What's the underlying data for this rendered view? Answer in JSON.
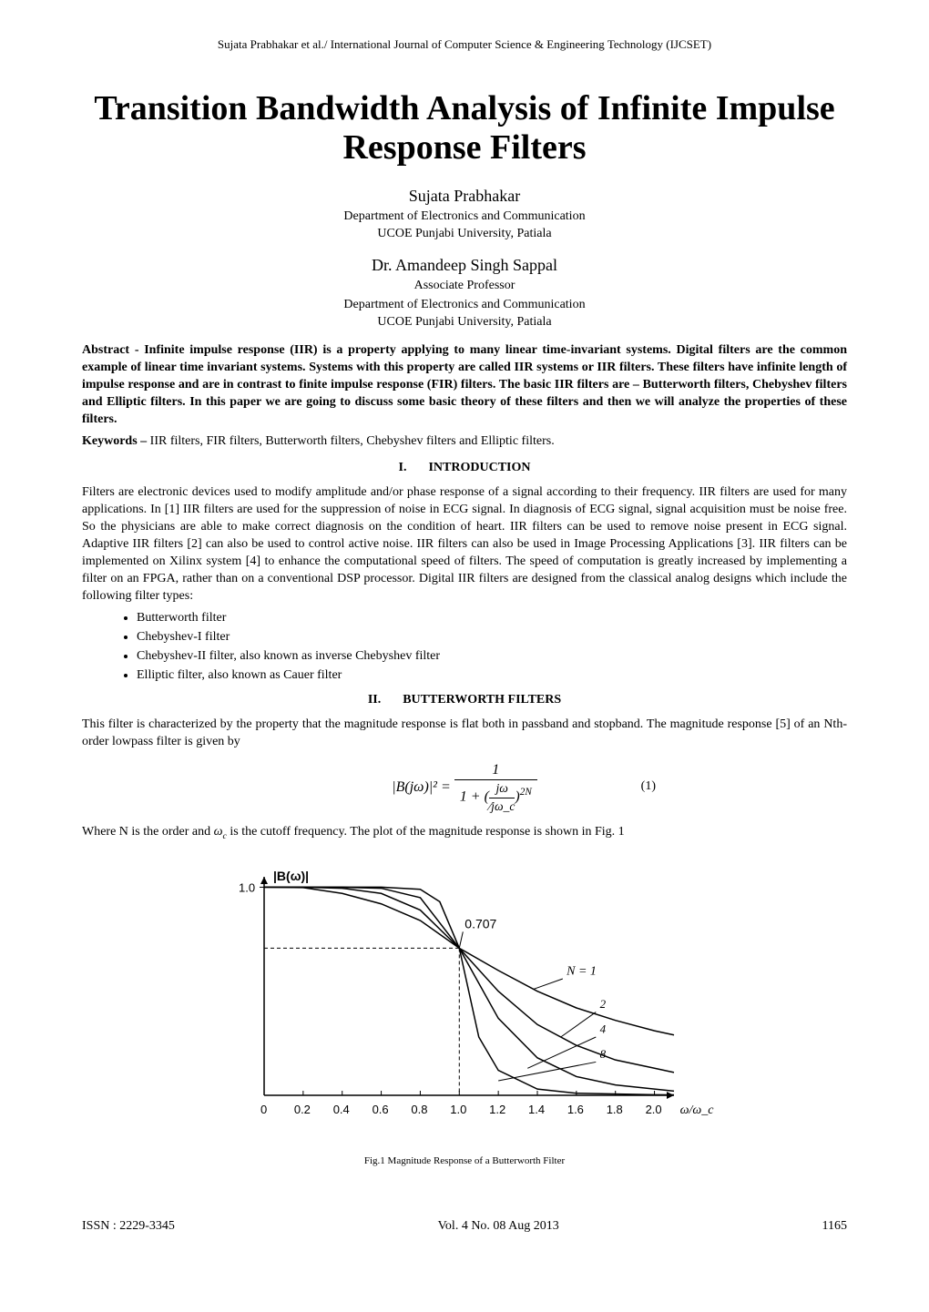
{
  "running_header": "Sujata Prabhakar et al./ International Journal of Computer Science & Engineering Technology (IJCSET)",
  "title": "Transition Bandwidth Analysis of Infinite Impulse Response Filters",
  "authors": [
    {
      "name": "Sujata Prabhakar",
      "role": "",
      "dept": "Department of Electronics and Communication",
      "univ": "UCOE Punjabi University, Patiala"
    },
    {
      "name": "Dr. Amandeep Singh Sappal",
      "role": "Associate Professor",
      "dept": "Department of Electronics and Communication",
      "univ": "UCOE Punjabi University, Patiala"
    }
  ],
  "abstract_label": "Abstract - ",
  "abstract_text": "Infinite impulse response (IIR) is a property applying to many linear time-invariant systems. Digital filters are the common example of linear time invariant systems. Systems with this property are called IIR systems or IIR filters. These filters have infinite length of impulse response and are in contrast to finite impulse response (FIR) filters. The basic IIR filters are – Butterworth filters, Chebyshev filters and Elliptic filters. In this paper we are going to discuss some basic theory of these filters and then we will analyze the properties of these filters.",
  "keywords_label": "Keywords – ",
  "keywords_text": "IIR filters, FIR filters, Butterworth filters, Chebyshev filters and Elliptic filters.",
  "sections": {
    "intro": {
      "num": "I.",
      "title": "INTRODUCTION"
    },
    "butter": {
      "num": "II.",
      "title": "BUTTERWORTH FILTERS"
    }
  },
  "intro_para": "Filters are electronic devices used to modify amplitude and/or phase response of a signal according to their frequency. IIR filters are used for many applications. In [1] IIR filters are used for the suppression of noise in ECG signal. In diagnosis of ECG signal, signal acquisition must be noise free. So the physicians are able to make correct diagnosis on the condition of heart. IIR filters can be used to remove noise present in ECG signal. Adaptive IIR filters [2] can also be used to control active noise. IIR filters can also be used in Image Processing Applications [3]. IIR filters can be implemented on Xilinx system [4] to enhance the computational speed of filters. The speed of computation is greatly increased by implementing a filter on an FPGA, rather than on a conventional DSP processor. Digital IIR filters are designed from the classical analog designs which include the following filter types:",
  "filter_types": [
    "Butterworth filter",
    "Chebyshev-I filter",
    "Chebyshev-II filter, also known as inverse Chebyshev filter",
    "Elliptic filter, also known as Cauer filter"
  ],
  "butter_para": "This filter is characterized by the property that the magnitude response is flat both in passband and stopband. The magnitude response [5] of an Nth-order lowpass filter is given by",
  "equation": {
    "lhs": "|B(jω)|² = ",
    "numerator": "1",
    "denominator_prefix": "1 + ",
    "denominator_frac_num": "jω",
    "denominator_frac_den": "jω_c",
    "exponent": "2N",
    "number": "(1)"
  },
  "post_eq_text_1": "Where N is the order and ",
  "post_eq_symbol": "ω_c",
  "post_eq_text_2": " is the cutoff frequency. The plot of the magnitude response is shown in Fig. 1",
  "figure1": {
    "type": "line",
    "ylabel": "|B(ω)|",
    "xlabel": "ω/ω_c",
    "annotation_0707": "0.707",
    "annotation_N": "N = 1",
    "curve_labels": [
      "2",
      "4",
      "8"
    ],
    "xlim": [
      0,
      2.1
    ],
    "ylim": [
      0,
      1.05
    ],
    "xticks": [
      "0",
      "0.2",
      "0.4",
      "0.6",
      "0.8",
      "1.0",
      "1.2",
      "1.4",
      "1.6",
      "1.8",
      "2.0"
    ],
    "ytick_1": "1.0",
    "axis_color": "#000000",
    "curve_color": "#000000",
    "line_width": 1.5,
    "background_color": "#ffffff",
    "curves": {
      "N1": [
        [
          0,
          1.0
        ],
        [
          0.2,
          0.998
        ],
        [
          0.4,
          0.97
        ],
        [
          0.6,
          0.92
        ],
        [
          0.8,
          0.84
        ],
        [
          1.0,
          0.707
        ],
        [
          1.2,
          0.6
        ],
        [
          1.4,
          0.5
        ],
        [
          1.6,
          0.42
        ],
        [
          1.8,
          0.36
        ],
        [
          2.0,
          0.31
        ],
        [
          2.1,
          0.29
        ]
      ],
      "N2": [
        [
          0,
          1.0
        ],
        [
          0.2,
          1.0
        ],
        [
          0.4,
          0.995
        ],
        [
          0.6,
          0.97
        ],
        [
          0.8,
          0.89
        ],
        [
          1.0,
          0.707
        ],
        [
          1.2,
          0.5
        ],
        [
          1.4,
          0.34
        ],
        [
          1.6,
          0.24
        ],
        [
          1.8,
          0.17
        ],
        [
          2.0,
          0.13
        ],
        [
          2.1,
          0.11
        ]
      ],
      "N4": [
        [
          0,
          1.0
        ],
        [
          0.2,
          1.0
        ],
        [
          0.4,
          1.0
        ],
        [
          0.6,
          0.995
        ],
        [
          0.8,
          0.95
        ],
        [
          1.0,
          0.707
        ],
        [
          1.2,
          0.37
        ],
        [
          1.4,
          0.18
        ],
        [
          1.6,
          0.09
        ],
        [
          1.8,
          0.05
        ],
        [
          2.0,
          0.03
        ],
        [
          2.1,
          0.02
        ]
      ],
      "N8": [
        [
          0,
          1.0
        ],
        [
          0.2,
          1.0
        ],
        [
          0.4,
          1.0
        ],
        [
          0.6,
          1.0
        ],
        [
          0.8,
          0.99
        ],
        [
          0.9,
          0.93
        ],
        [
          1.0,
          0.707
        ],
        [
          1.1,
          0.28
        ],
        [
          1.2,
          0.12
        ],
        [
          1.4,
          0.03
        ],
        [
          1.6,
          0.01
        ],
        [
          2.0,
          0.003
        ],
        [
          2.1,
          0.002
        ]
      ]
    },
    "caption": "Fig.1 Magnitude Response of a Butterworth Filter"
  },
  "footer": {
    "issn": "ISSN : 2229-3345",
    "vol": "Vol. 4 No. 08 Aug 2013",
    "page": "1165"
  }
}
